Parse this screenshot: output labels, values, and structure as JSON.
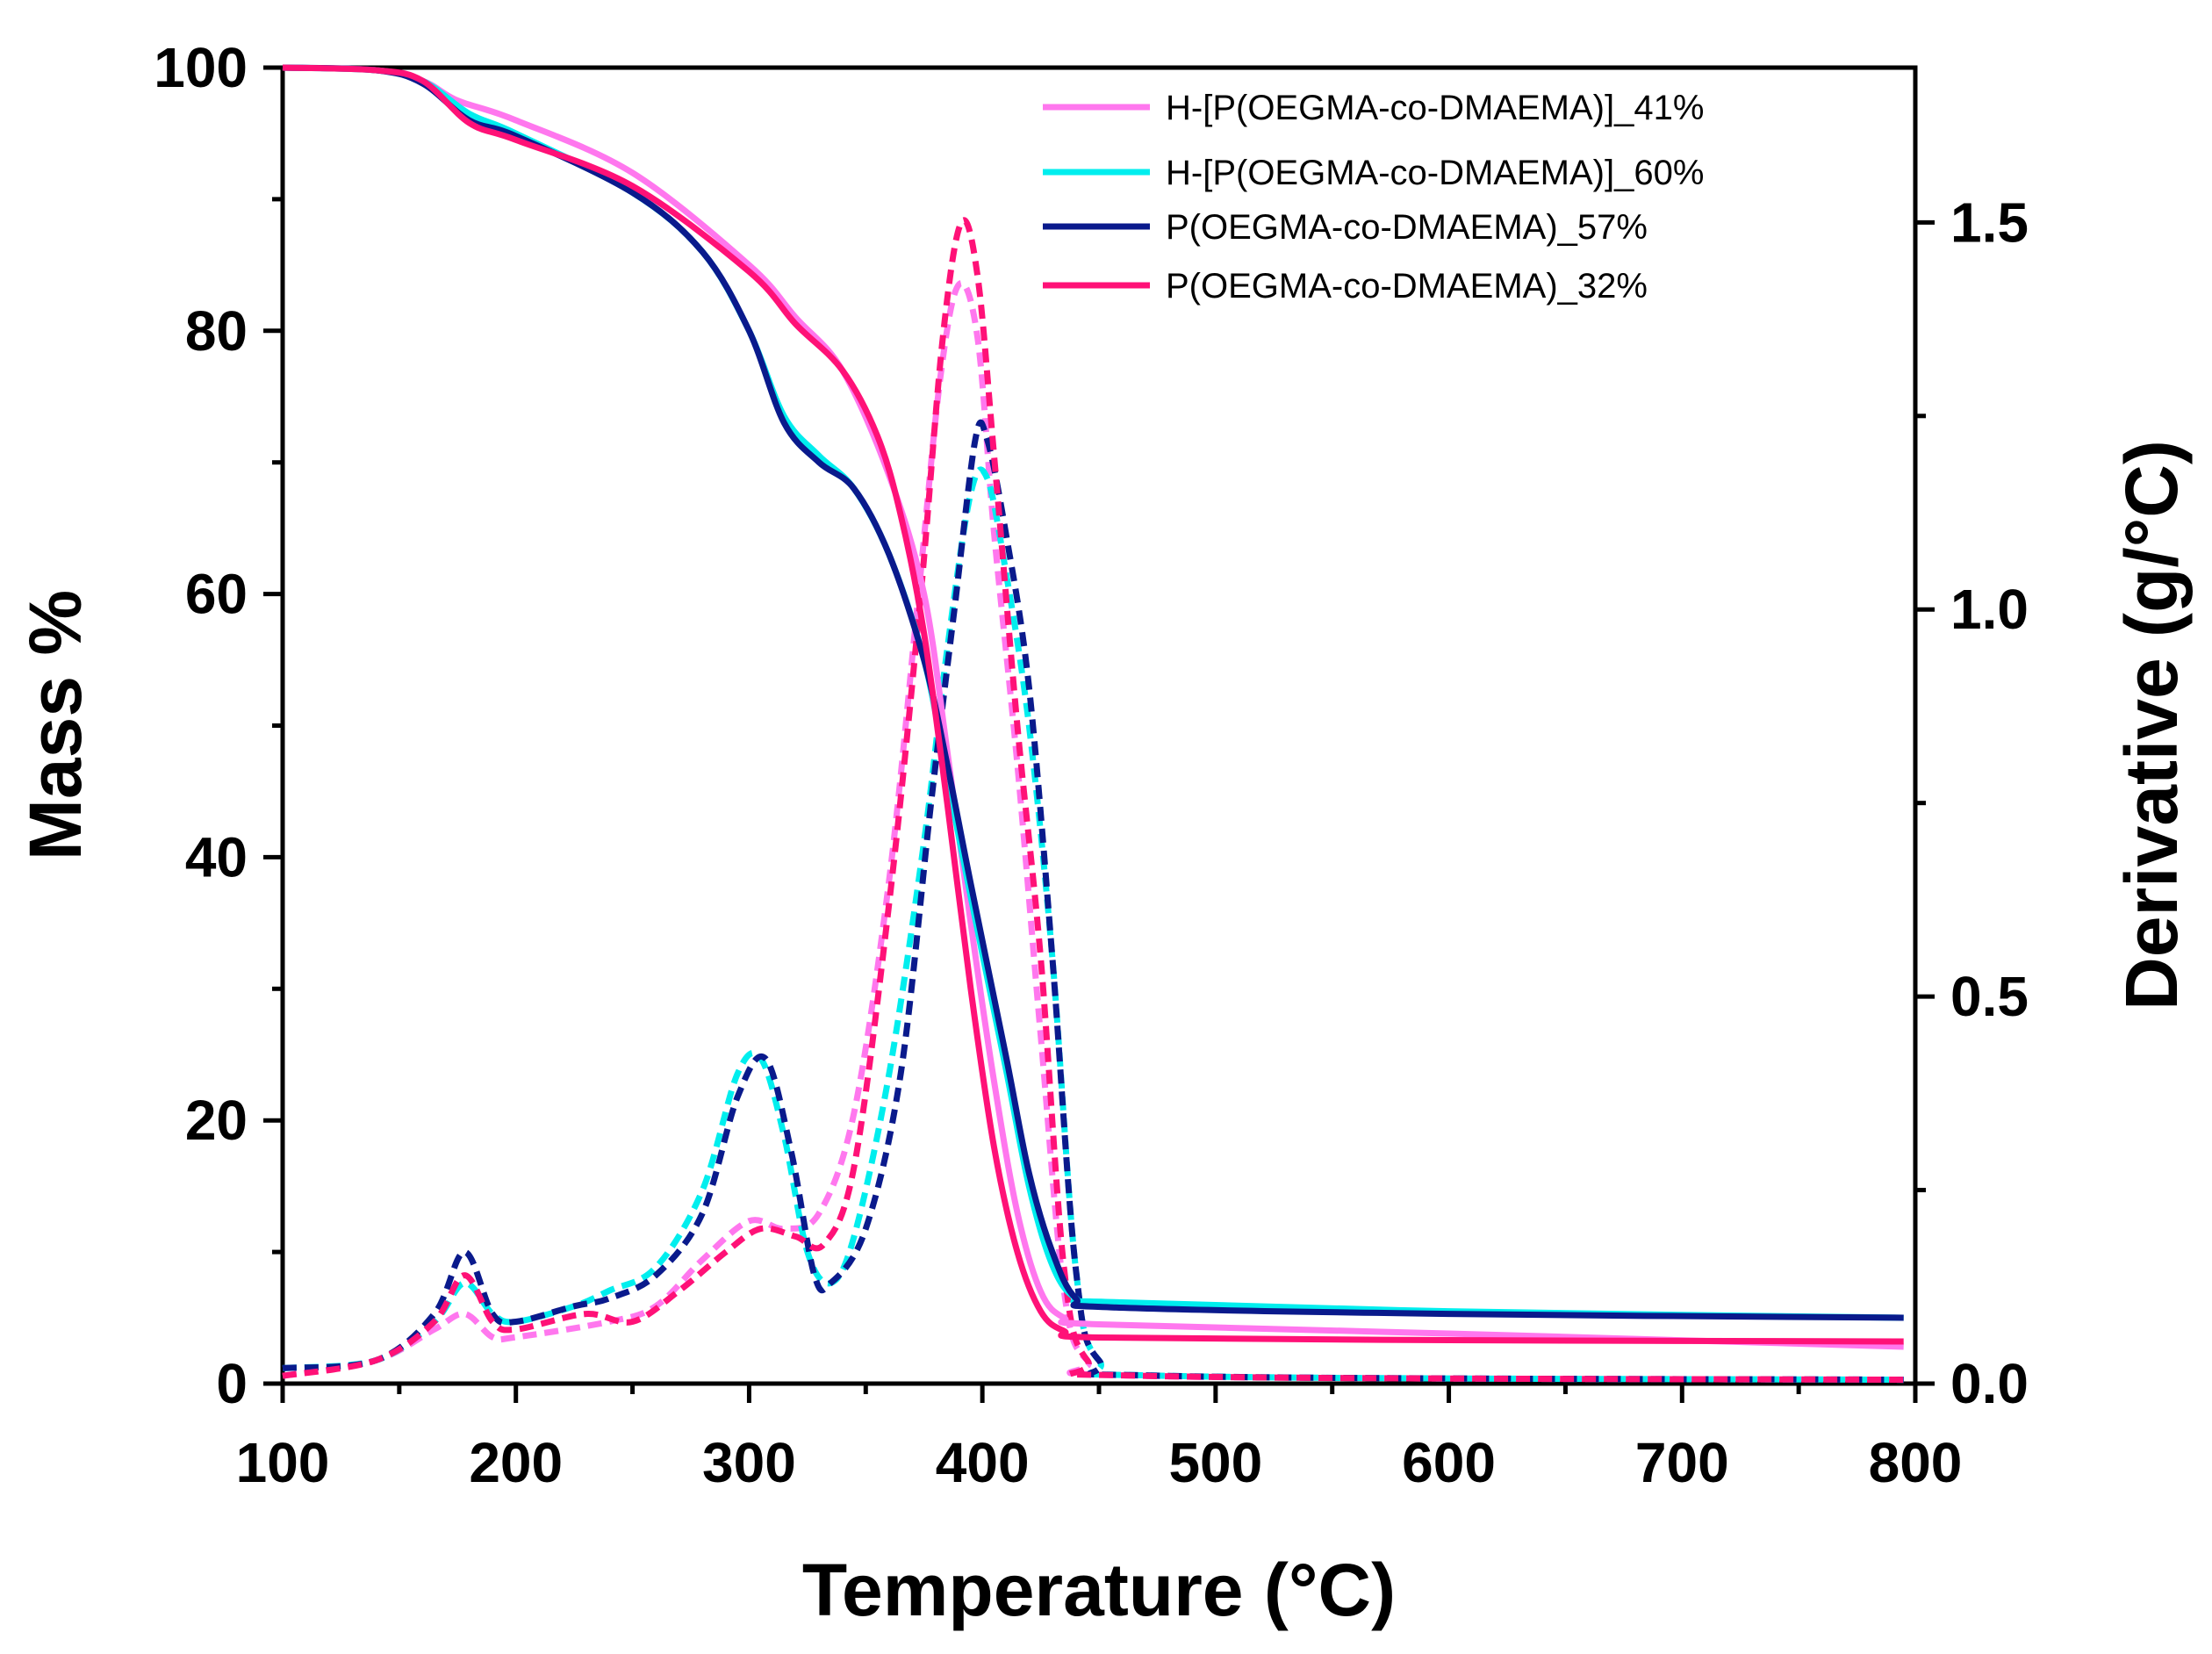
{
  "chart_data": {
    "type": "line",
    "title": "",
    "xlabel": "Temperature (°C)",
    "ylabel": "Mass %",
    "ylabel_right": "Derivative (g/°C)",
    "xlim": [
      100,
      800
    ],
    "ylim": [
      0,
      100
    ],
    "ylim_right": [
      0,
      1.7
    ],
    "x_ticks": [
      "100",
      "200",
      "300",
      "400",
      "500",
      "600",
      "700",
      "800"
    ],
    "y_ticks": [
      "0",
      "20",
      "40",
      "60",
      "80",
      "100"
    ],
    "y_right_ticks": [
      "0.0",
      "0.5",
      "1.0",
      "1.5"
    ],
    "legend_position": "top-right",
    "series": [
      {
        "name": "H-[P(OEGMA-co-DMAEMA)]_41%",
        "color": "#ff77ee",
        "mass": [
          [
            100,
            100
          ],
          [
            140,
            99.8
          ],
          [
            160,
            99
          ],
          [
            175,
            97.5
          ],
          [
            200,
            96
          ],
          [
            250,
            92
          ],
          [
            300,
            85
          ],
          [
            320,
            81
          ],
          [
            340,
            77
          ],
          [
            360,
            69
          ],
          [
            375,
            60
          ],
          [
            385,
            48
          ],
          [
            395,
            35
          ],
          [
            405,
            23
          ],
          [
            415,
            13
          ],
          [
            425,
            7
          ],
          [
            435,
            5
          ],
          [
            450,
            4.5
          ],
          [
            600,
            3.8
          ],
          [
            795,
            2.8
          ]
        ],
        "derivative": [
          [
            100,
            0.01
          ],
          [
            140,
            0.03
          ],
          [
            165,
            0.07
          ],
          [
            178,
            0.09
          ],
          [
            190,
            0.06
          ],
          [
            200,
            0.06
          ],
          [
            240,
            0.08
          ],
          [
            260,
            0.1
          ],
          [
            280,
            0.16
          ],
          [
            300,
            0.21
          ],
          [
            315,
            0.2
          ],
          [
            330,
            0.22
          ],
          [
            345,
            0.35
          ],
          [
            360,
            0.65
          ],
          [
            372,
            1.0
          ],
          [
            382,
            1.3
          ],
          [
            390,
            1.42
          ],
          [
            398,
            1.35
          ],
          [
            405,
            1.1
          ],
          [
            415,
            0.8
          ],
          [
            425,
            0.45
          ],
          [
            435,
            0.12
          ],
          [
            445,
            0.03
          ],
          [
            470,
            0.01
          ],
          [
            795,
            0.005
          ]
        ]
      },
      {
        "name": "H-[P(OEGMA-co-DMAEMA)]_60%",
        "color": "#00eeee",
        "mass": [
          [
            100,
            100
          ],
          [
            140,
            99.8
          ],
          [
            160,
            99
          ],
          [
            180,
            96.5
          ],
          [
            200,
            95
          ],
          [
            250,
            90.5
          ],
          [
            280,
            86
          ],
          [
            300,
            80
          ],
          [
            315,
            73.5
          ],
          [
            330,
            70.5
          ],
          [
            345,
            68
          ],
          [
            360,
            63
          ],
          [
            375,
            55
          ],
          [
            385,
            46
          ],
          [
            395,
            37
          ],
          [
            410,
            24
          ],
          [
            420,
            15
          ],
          [
            430,
            9
          ],
          [
            440,
            6.5
          ],
          [
            455,
            6.2
          ],
          [
            600,
            5.5
          ],
          [
            795,
            5.0
          ]
        ],
        "derivative": [
          [
            100,
            0.02
          ],
          [
            140,
            0.03
          ],
          [
            165,
            0.08
          ],
          [
            178,
            0.13
          ],
          [
            190,
            0.09
          ],
          [
            200,
            0.08
          ],
          [
            225,
            0.1
          ],
          [
            240,
            0.12
          ],
          [
            260,
            0.15
          ],
          [
            280,
            0.25
          ],
          [
            295,
            0.4
          ],
          [
            305,
            0.42
          ],
          [
            315,
            0.32
          ],
          [
            325,
            0.17
          ],
          [
            335,
            0.13
          ],
          [
            345,
            0.19
          ],
          [
            360,
            0.4
          ],
          [
            375,
            0.7
          ],
          [
            385,
            0.95
          ],
          [
            395,
            1.15
          ],
          [
            402,
            1.17
          ],
          [
            410,
            1.05
          ],
          [
            420,
            0.85
          ],
          [
            430,
            0.55
          ],
          [
            440,
            0.15
          ],
          [
            450,
            0.03
          ],
          [
            480,
            0.01
          ],
          [
            795,
            0.005
          ]
        ]
      },
      {
        "name": "P(OEGMA-co-DMAEMA)_57%",
        "color": "#0a1a8c",
        "mass": [
          [
            100,
            100
          ],
          [
            140,
            99.8
          ],
          [
            160,
            98.8
          ],
          [
            180,
            96
          ],
          [
            200,
            94.8
          ],
          [
            250,
            90.5
          ],
          [
            280,
            86
          ],
          [
            300,
            80
          ],
          [
            315,
            73
          ],
          [
            330,
            70
          ],
          [
            345,
            68
          ],
          [
            360,
            63
          ],
          [
            375,
            55
          ],
          [
            385,
            47
          ],
          [
            395,
            38
          ],
          [
            410,
            25
          ],
          [
            420,
            16
          ],
          [
            430,
            10
          ],
          [
            440,
            6.5
          ],
          [
            455,
            5.8
          ],
          [
            600,
            5.3
          ],
          [
            795,
            5.0
          ]
        ],
        "derivative": [
          [
            100,
            0.02
          ],
          [
            140,
            0.03
          ],
          [
            165,
            0.09
          ],
          [
            178,
            0.17
          ],
          [
            190,
            0.09
          ],
          [
            200,
            0.08
          ],
          [
            225,
            0.1
          ],
          [
            240,
            0.11
          ],
          [
            260,
            0.14
          ],
          [
            280,
            0.22
          ],
          [
            295,
            0.37
          ],
          [
            307,
            0.42
          ],
          [
            318,
            0.3
          ],
          [
            328,
            0.14
          ],
          [
            335,
            0.13
          ],
          [
            350,
            0.2
          ],
          [
            365,
            0.4
          ],
          [
            378,
            0.75
          ],
          [
            388,
            1.0
          ],
          [
            397,
            1.22
          ],
          [
            402,
            1.22
          ],
          [
            410,
            1.1
          ],
          [
            420,
            0.9
          ],
          [
            430,
            0.55
          ],
          [
            440,
            0.15
          ],
          [
            450,
            0.03
          ],
          [
            480,
            0.01
          ],
          [
            795,
            0.005
          ]
        ]
      },
      {
        "name": "P(OEGMA-co-DMAEMA)_32%",
        "color": "#ff1177",
        "mass": [
          [
            100,
            100
          ],
          [
            140,
            99.8
          ],
          [
            160,
            99
          ],
          [
            180,
            95.8
          ],
          [
            200,
            94.5
          ],
          [
            250,
            91
          ],
          [
            300,
            84.5
          ],
          [
            320,
            80.5
          ],
          [
            340,
            77
          ],
          [
            355,
            72
          ],
          [
            365,
            66
          ],
          [
            375,
            57
          ],
          [
            385,
            44
          ],
          [
            395,
            30
          ],
          [
            405,
            18
          ],
          [
            415,
            10
          ],
          [
            425,
            5.5
          ],
          [
            435,
            4
          ],
          [
            450,
            3.5
          ],
          [
            600,
            3.3
          ],
          [
            795,
            3.2
          ]
        ],
        "derivative": [
          [
            100,
            0.01
          ],
          [
            140,
            0.03
          ],
          [
            165,
            0.08
          ],
          [
            178,
            0.14
          ],
          [
            190,
            0.08
          ],
          [
            200,
            0.07
          ],
          [
            230,
            0.09
          ],
          [
            250,
            0.08
          ],
          [
            270,
            0.12
          ],
          [
            290,
            0.17
          ],
          [
            305,
            0.2
          ],
          [
            320,
            0.19
          ],
          [
            332,
            0.18
          ],
          [
            345,
            0.28
          ],
          [
            360,
            0.62
          ],
          [
            373,
            1.0
          ],
          [
            383,
            1.35
          ],
          [
            391,
            1.5
          ],
          [
            398,
            1.43
          ],
          [
            405,
            1.2
          ],
          [
            415,
            0.85
          ],
          [
            425,
            0.55
          ],
          [
            435,
            0.15
          ],
          [
            445,
            0.03
          ],
          [
            470,
            0.01
          ],
          [
            795,
            0.005
          ]
        ]
      }
    ]
  }
}
